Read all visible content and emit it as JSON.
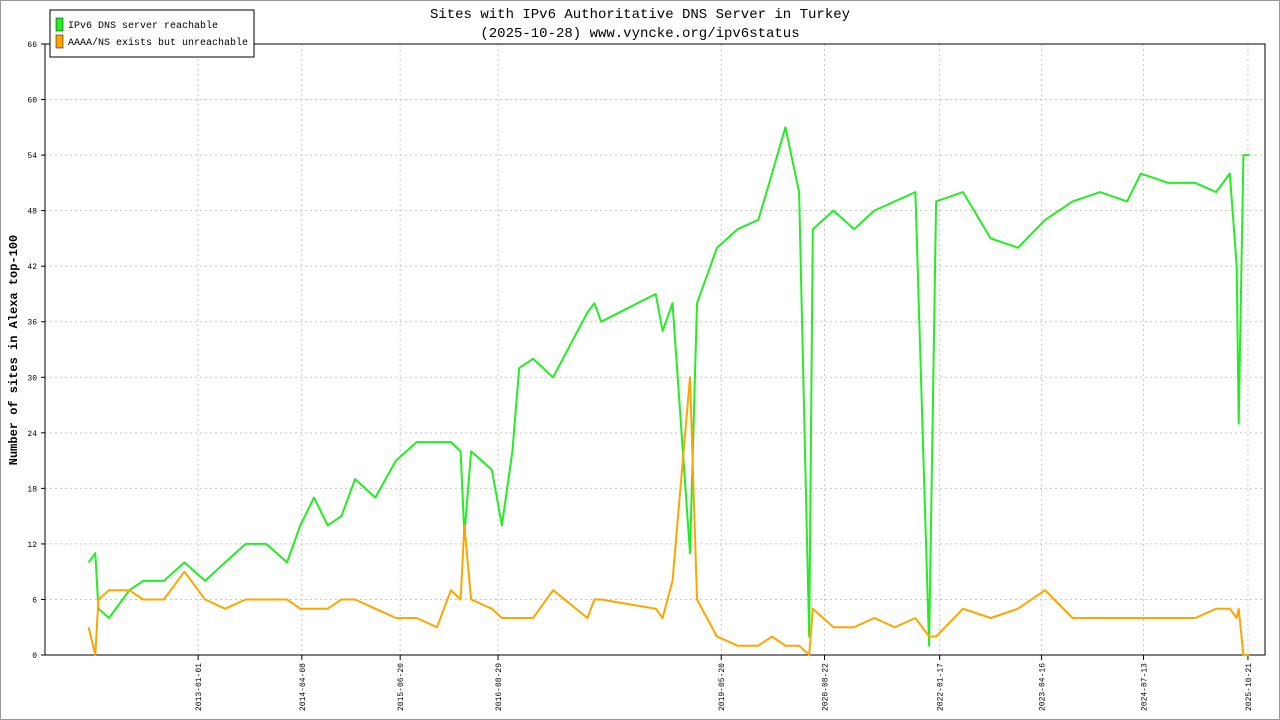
{
  "chart_data": {
    "type": "line",
    "title": "Sites with IPv6 Authoritative DNS Server in Turkey",
    "subtitle": "(2025-10-28) www.vyncke.org/ipv6status",
    "y_label": "Number of sites in Alexa top-100",
    "x": [
      "2011-09-01",
      "2011-10-01",
      "2011-10-15",
      "2011-12-01",
      "2012-03-01",
      "2012-05-01",
      "2012-08-01",
      "2012-11-01",
      "2013-02-01",
      "2013-05-01",
      "2013-08-01",
      "2013-11-01",
      "2014-02-01",
      "2014-04-01",
      "2014-06-01",
      "2014-08-01",
      "2014-10-01",
      "2014-12-01",
      "2015-03-01",
      "2015-06-01",
      "2015-09-01",
      "2015-12-01",
      "2016-02-01",
      "2016-03-15",
      "2016-04-01",
      "2016-05-01",
      "2016-08-01",
      "2016-09-15",
      "2016-11-01",
      "2016-12-01",
      "2017-02-01",
      "2017-05-01",
      "2017-10-01",
      "2017-11-01",
      "2017-12-01",
      "2018-08-01",
      "2018-09-01",
      "2018-10-15",
      "2019-01-01",
      "2019-02-01",
      "2019-05-01",
      "2019-08-01",
      "2019-11-01",
      "2020-01-01",
      "2020-03-01",
      "2020-05-01",
      "2020-06-15",
      "2020-07-01",
      "2020-10-01",
      "2021-01-01",
      "2021-04-01",
      "2021-07-01",
      "2021-10-01",
      "2021-12-01",
      "2022-01-01",
      "2022-05-01",
      "2022-09-01",
      "2023-01-01",
      "2023-05-01",
      "2023-09-01",
      "2024-01-01",
      "2024-05-01",
      "2024-07-01",
      "2024-11-01",
      "2025-03-01",
      "2025-06-01",
      "2025-08-01",
      "2025-09-01",
      "2025-09-10",
      "2025-10-01",
      "2025-10-28"
    ],
    "series": [
      {
        "name": "IPv6 DNS server reachable",
        "color": "#22ee22",
        "values": [
          10,
          11,
          5,
          4,
          7,
          8,
          8,
          10,
          8,
          10,
          12,
          12,
          10,
          14,
          17,
          14,
          15,
          19,
          17,
          21,
          23,
          23,
          23,
          22,
          13,
          22,
          20,
          14,
          22,
          31,
          32,
          30,
          37,
          38,
          36,
          39,
          35,
          38,
          11,
          38,
          44,
          46,
          47,
          52,
          57,
          50,
          2,
          46,
          48,
          46,
          48,
          49,
          50,
          1,
          49,
          50,
          45,
          44,
          47,
          49,
          50,
          49,
          52,
          51,
          51,
          50,
          52,
          42,
          25,
          54,
          54
        ]
      },
      {
        "name": "AAAA/NS exists but unreachable",
        "color": "#ffa500",
        "values": [
          3,
          0,
          6,
          7,
          7,
          6,
          6,
          9,
          6,
          5,
          6,
          6,
          6,
          5,
          5,
          5,
          6,
          6,
          5,
          4,
          4,
          3,
          7,
          6,
          14,
          6,
          5,
          4,
          4,
          4,
          4,
          7,
          4,
          6,
          6,
          5,
          4,
          8,
          30,
          6,
          2,
          1,
          1,
          2,
          1,
          1,
          0,
          5,
          3,
          3,
          4,
          3,
          4,
          2,
          2,
          5,
          4,
          5,
          7,
          4,
          4,
          4,
          4,
          4,
          4,
          5,
          5,
          4,
          5,
          0,
          0
        ]
      }
    ],
    "xlim": [
      "2011-02-19",
      "2026-01-05"
    ],
    "xticks": [
      "2013-01-01",
      "2014-04-08",
      "2015-06-20",
      "2016-08-29",
      "2019-05-20",
      "2020-08-22",
      "2022-01-17",
      "2023-04-16",
      "2024-07-13",
      "2025-10-21"
    ],
    "ylim": [
      0,
      66
    ],
    "yticks": [
      0,
      6,
      12,
      18,
      24,
      30,
      36,
      42,
      48,
      54,
      60,
      66
    ],
    "grid": true,
    "legend": "upper-left"
  }
}
